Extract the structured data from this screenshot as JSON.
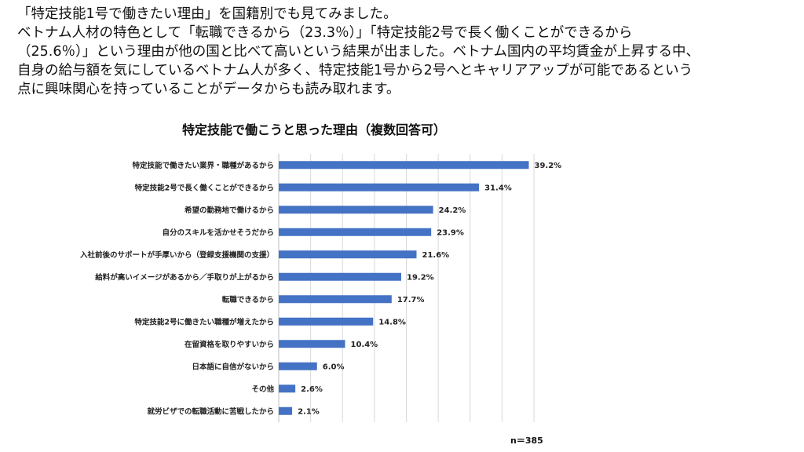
{
  "intro": {
    "lines": [
      "「特定技能1号で働きたい理由」を国籍別でも見てみました。",
      "ベトナム人材の特色として「転職できるから（23.3％）」「特定技能2号で長く働くことができるから",
      "（25.6％）」という理由が他の国と比べて高いという結果が出ました。ベトナム国内の平均賃金が上昇する中、",
      "自身の給与額を気にしているベトナム人が多く、特定技能1号から2号へとキャリアアップが可能であるという",
      "点に興味関心を持っていることがデータからも読み取れます。"
    ]
  },
  "chart_data": {
    "type": "bar",
    "orientation": "horizontal",
    "title": "特定技能で働こうと思った理由（複数回答可）",
    "categories": [
      "特定技能で働きたい業界・職種があるから",
      "特定技能2号で長く働くことができるから",
      "希望の勤務地で働けるから",
      "自分のスキルを活かせそうだから",
      "入社前後のサポートが手厚いから（登録支援機関の支援）",
      "給料が高いイメージがあるから／手取りが上がるから",
      "転職できるから",
      "特定技能2号に働きたい職種が増えたから",
      "在留資格を取りやすいから",
      "日本語に自信がないから",
      "その他",
      "就労ビザでの転職活動に苦戦したから"
    ],
    "values": [
      39.2,
      31.4,
      24.2,
      23.9,
      21.6,
      19.2,
      17.7,
      14.8,
      10.4,
      6.0,
      2.6,
      2.1
    ],
    "value_labels": [
      "39.2%",
      "31.4%",
      "24.2%",
      "23.9%",
      "21.6%",
      "19.2%",
      "17.7%",
      "14.8%",
      "10.4%",
      "6.0%",
      "2.6%",
      "2.1%"
    ],
    "xlim": [
      0,
      40
    ],
    "grid": "vertical",
    "bar_color": "#4472c4",
    "note": "n＝385"
  }
}
